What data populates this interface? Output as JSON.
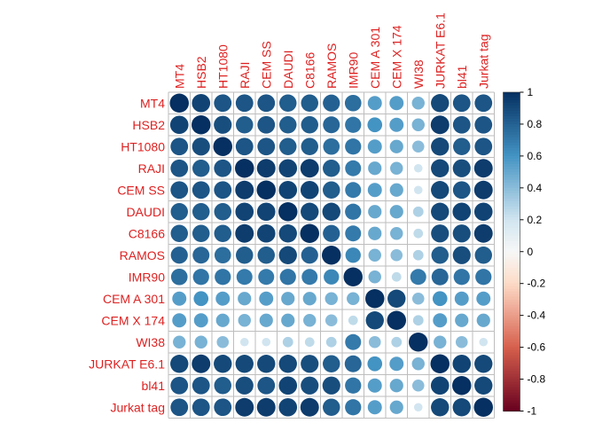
{
  "chart_data": {
    "type": "heatmap",
    "style": "circle correlation matrix",
    "labels": [
      "MT4",
      "HSB2",
      "HT1080",
      "RAJI",
      "CEM SS",
      "DAUDI",
      "C8166",
      "RAMOS",
      "IMR90",
      "CEM A 301",
      "CEM X 174",
      "WI38",
      "JURKAT E6.1",
      "bl41",
      "Jurkat tag"
    ],
    "matrix": [
      [
        1.0,
        0.92,
        0.85,
        0.85,
        0.85,
        0.82,
        0.82,
        0.8,
        0.75,
        0.55,
        0.55,
        0.45,
        0.9,
        0.85,
        0.85
      ],
      [
        0.92,
        1.0,
        0.88,
        0.82,
        0.85,
        0.82,
        0.82,
        0.78,
        0.72,
        0.6,
        0.55,
        0.45,
        0.95,
        0.85,
        0.85
      ],
      [
        0.85,
        0.88,
        1.0,
        0.85,
        0.85,
        0.82,
        0.82,
        0.75,
        0.72,
        0.55,
        0.5,
        0.4,
        0.9,
        0.82,
        0.85
      ],
      [
        0.85,
        0.82,
        0.85,
        1.0,
        0.95,
        0.92,
        0.95,
        0.82,
        0.7,
        0.5,
        0.45,
        0.2,
        0.9,
        0.88,
        0.95
      ],
      [
        0.85,
        0.85,
        0.85,
        0.95,
        1.0,
        0.92,
        0.92,
        0.82,
        0.7,
        0.55,
        0.5,
        0.2,
        0.9,
        0.85,
        0.95
      ],
      [
        0.82,
        0.82,
        0.82,
        0.92,
        0.92,
        1.0,
        0.9,
        0.9,
        0.72,
        0.5,
        0.5,
        0.3,
        0.9,
        0.92,
        0.92
      ],
      [
        0.82,
        0.82,
        0.82,
        0.95,
        0.92,
        0.9,
        1.0,
        0.8,
        0.7,
        0.5,
        0.45,
        0.25,
        0.88,
        0.88,
        0.95
      ],
      [
        0.8,
        0.78,
        0.75,
        0.82,
        0.82,
        0.9,
        0.8,
        1.0,
        0.65,
        0.45,
        0.4,
        0.3,
        0.82,
        0.88,
        0.82
      ],
      [
        0.75,
        0.72,
        0.72,
        0.7,
        0.7,
        0.72,
        0.7,
        0.65,
        1.0,
        0.45,
        0.25,
        0.7,
        0.78,
        0.72,
        0.72
      ],
      [
        0.55,
        0.6,
        0.55,
        0.5,
        0.55,
        0.5,
        0.5,
        0.45,
        0.45,
        1.0,
        0.9,
        0.4,
        0.6,
        0.55,
        0.55
      ],
      [
        0.55,
        0.55,
        0.5,
        0.45,
        0.5,
        0.5,
        0.45,
        0.4,
        0.25,
        0.9,
        1.0,
        0.3,
        0.55,
        0.5,
        0.5
      ],
      [
        0.45,
        0.45,
        0.4,
        0.2,
        0.2,
        0.3,
        0.25,
        0.3,
        0.7,
        0.4,
        0.3,
        1.0,
        0.45,
        0.4,
        0.2
      ],
      [
        0.9,
        0.95,
        0.9,
        0.9,
        0.9,
        0.9,
        0.88,
        0.82,
        0.78,
        0.6,
        0.55,
        0.45,
        1.0,
        0.92,
        0.9
      ],
      [
        0.85,
        0.85,
        0.82,
        0.88,
        0.85,
        0.92,
        0.88,
        0.88,
        0.72,
        0.55,
        0.5,
        0.4,
        0.92,
        1.0,
        0.9
      ],
      [
        0.85,
        0.85,
        0.85,
        0.95,
        0.95,
        0.92,
        0.95,
        0.82,
        0.72,
        0.55,
        0.5,
        0.2,
        0.9,
        0.9,
        1.0
      ]
    ],
    "colorbar": {
      "range": [
        -1,
        1
      ],
      "ticks": [
        "1",
        "0.8",
        "0.6",
        "0.4",
        "0.2",
        "0",
        "-0.2",
        "-0.4",
        "-0.6",
        "-0.8",
        "-1"
      ],
      "colors": {
        "neg_end": "#67001F",
        "neg_mid": "#D6604D",
        "neg_near": "#FDDBC7",
        "zero": "#F7F7F7",
        "pos_near": "#D1E5F0",
        "pos_mid": "#4393C3",
        "pos_end": "#053061"
      }
    },
    "label_color": "#DD2222",
    "grid_color": "#BEBEBE",
    "grid": true,
    "legend_position": "right"
  }
}
